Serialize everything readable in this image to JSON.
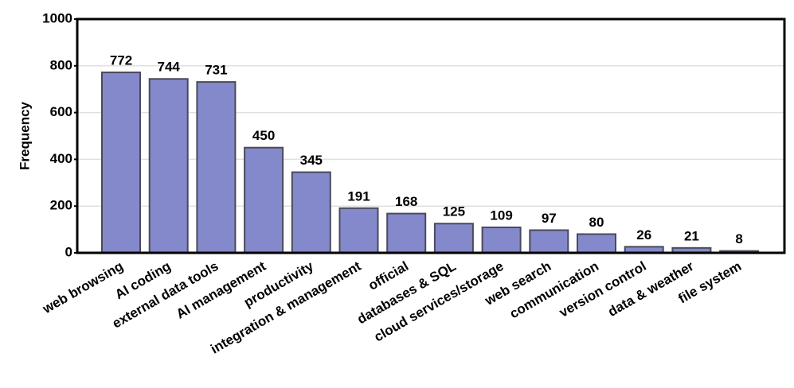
{
  "chart_data": {
    "type": "bar",
    "y_label": "Frequency",
    "categories": [
      "web browsing",
      "AI coding",
      "external data tools",
      "AI management",
      "productivity",
      "integration & management",
      "official",
      "databases & SQL",
      "cloud services/storage",
      "web search",
      "communication",
      "version control",
      "data & weather",
      "file system"
    ],
    "values": [
      772,
      744,
      731,
      450,
      345,
      191,
      168,
      125,
      109,
      97,
      80,
      26,
      21,
      8
    ],
    "color": "#8489cc",
    "ylim": [
      0,
      1000
    ],
    "yticks": [
      0,
      200,
      400,
      600,
      800,
      1000
    ],
    "grid": true
  }
}
